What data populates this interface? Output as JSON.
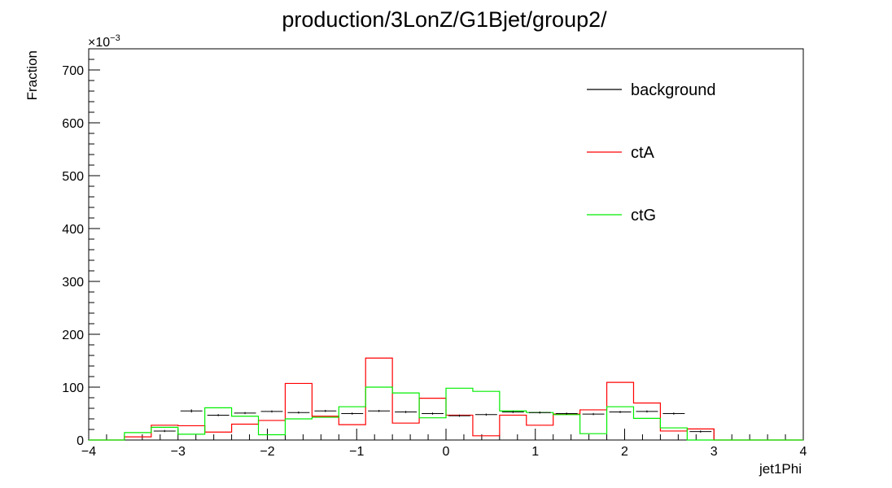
{
  "chart_data": {
    "type": "histogram",
    "title": "production/3LonZ/G1Bjet/group2/",
    "xlabel": "jet1Phi",
    "ylabel": "Fraction",
    "y_exponent_label": "×10",
    "y_exponent_power": "−3",
    "xlim": [
      -4,
      4
    ],
    "ylim": [
      0,
      740
    ],
    "x_ticks": [
      -4,
      -3,
      -2,
      -1,
      0,
      1,
      2,
      3,
      4
    ],
    "x_tick_labels": [
      "−4",
      "−3",
      "−2",
      "−1",
      "0",
      "1",
      "2",
      "3",
      "4"
    ],
    "y_ticks": [
      0,
      100,
      200,
      300,
      400,
      500,
      600,
      700
    ],
    "y_tick_labels": [
      "0",
      "100",
      "200",
      "300",
      "400",
      "500",
      "600",
      "700"
    ],
    "bin_edges": [
      -4.0,
      -3.6,
      -3.3,
      -3.0,
      -2.7,
      -2.4,
      -2.1,
      -1.8,
      -1.5,
      -1.2,
      -0.9,
      -0.6,
      -0.3,
      0.0,
      0.3,
      0.6,
      0.9,
      1.2,
      1.5,
      1.8,
      2.1,
      2.4,
      2.7,
      3.0,
      3.3,
      3.6,
      4.0
    ],
    "legend_position": "top-right",
    "series": [
      {
        "name": "background",
        "color": "#000000",
        "style": "errorbar",
        "values": [
          0,
          0,
          17,
          55,
          47,
          51,
          54,
          52,
          55,
          50,
          55,
          53,
          50,
          46,
          48,
          53,
          52,
          50,
          49,
          53,
          54,
          50,
          16,
          0,
          0,
          0
        ],
        "errors": [
          0,
          0,
          2,
          3,
          2,
          2,
          2,
          2,
          2,
          2,
          2,
          2,
          2,
          2,
          2,
          2,
          2,
          2,
          2,
          2,
          2,
          2,
          2,
          0,
          0,
          0
        ]
      },
      {
        "name": "ctA",
        "color": "#ff0000",
        "style": "step",
        "values": [
          0,
          6,
          28,
          27,
          15,
          30,
          37,
          107,
          45,
          29,
          155,
          32,
          79,
          47,
          8,
          47,
          28,
          49,
          57,
          109,
          70,
          17,
          21,
          0,
          0,
          0
        ]
      },
      {
        "name": "ctG",
        "color": "#00ee00",
        "style": "step",
        "values": [
          0,
          14,
          24,
          11,
          61,
          45,
          10,
          40,
          43,
          63,
          100,
          89,
          42,
          98,
          92,
          55,
          52,
          48,
          12,
          63,
          41,
          23,
          0,
          0,
          0,
          0
        ]
      }
    ]
  }
}
